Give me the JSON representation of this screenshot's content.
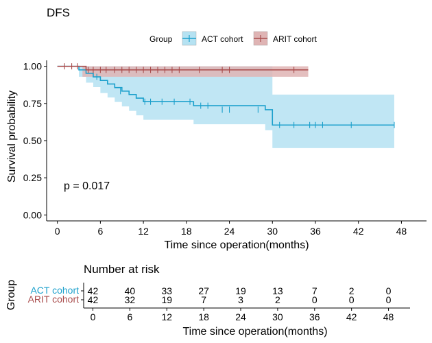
{
  "chart_data": {
    "type": "line",
    "title": "DFS",
    "legend": {
      "title": "Group",
      "placement": "top"
    },
    "xlabel": "Time since operation(months)",
    "ylabel": "Survival probability",
    "xlim": [
      -1.5,
      51.5
    ],
    "ylim": [
      -0.04,
      1.04
    ],
    "xticks": [
      0,
      6,
      12,
      18,
      24,
      30,
      36,
      42,
      48
    ],
    "yticks": [
      0.0,
      0.25,
      0.5,
      0.75,
      1.0
    ],
    "ytick_labels": [
      "0.00",
      "0.25",
      "0.50",
      "0.75",
      "1.00"
    ],
    "annotation": "p = 0.017",
    "series": [
      {
        "name": "ACT cohort",
        "color": "#1ba0cc",
        "fill": "#b5e2f2",
        "steps": [
          [
            0,
            1.0
          ],
          [
            3,
            0.976
          ],
          [
            4,
            0.953
          ],
          [
            5,
            0.929
          ],
          [
            6,
            0.905
          ],
          [
            7,
            0.881
          ],
          [
            8,
            0.857
          ],
          [
            9,
            0.833
          ],
          [
            10,
            0.81
          ],
          [
            11,
            0.786
          ],
          [
            12,
            0.762
          ],
          [
            19,
            0.735
          ],
          [
            29,
            0.708
          ],
          [
            30,
            0.605
          ],
          [
            47,
            0.605
          ]
        ],
        "lower": [
          [
            0,
            1.0
          ],
          [
            3,
            0.93
          ],
          [
            4,
            0.89
          ],
          [
            5,
            0.86
          ],
          [
            6,
            0.82
          ],
          [
            7,
            0.79
          ],
          [
            8,
            0.76
          ],
          [
            9,
            0.73
          ],
          [
            10,
            0.7
          ],
          [
            11,
            0.67
          ],
          [
            12,
            0.64
          ],
          [
            19,
            0.61
          ],
          [
            29,
            0.57
          ],
          [
            30,
            0.45
          ],
          [
            47,
            0.45
          ]
        ],
        "upper": [
          [
            0,
            1.0
          ],
          [
            3,
            1.0
          ],
          [
            30,
            0.81
          ],
          [
            47,
            0.81
          ]
        ],
        "censors": [
          [
            5.5,
            0.929
          ],
          [
            8.8,
            0.833
          ],
          [
            12.2,
            0.762
          ],
          [
            13,
            0.762
          ],
          [
            14.6,
            0.762
          ],
          [
            16.3,
            0.762
          ],
          [
            18.5,
            0.762
          ],
          [
            20,
            0.735
          ],
          [
            21,
            0.735
          ],
          [
            23,
            0.708
          ],
          [
            24,
            0.708
          ],
          [
            28,
            0.708
          ],
          [
            31,
            0.605
          ],
          [
            33,
            0.605
          ],
          [
            35.2,
            0.605
          ],
          [
            36,
            0.605
          ],
          [
            37,
            0.605
          ],
          [
            41,
            0.605
          ],
          [
            47,
            0.605
          ]
        ]
      },
      {
        "name": "ARIT cohort",
        "color": "#a94c4c",
        "fill": "#dfb4b4",
        "steps": [
          [
            0,
            1.0
          ],
          [
            4,
            0.976
          ],
          [
            35,
            0.976
          ]
        ],
        "lower": [
          [
            0,
            1.0
          ],
          [
            3.5,
            0.93
          ],
          [
            35,
            0.93
          ]
        ],
        "upper": [
          [
            0,
            1.0
          ],
          [
            35,
            1.0
          ]
        ],
        "censors": [
          [
            1,
            1.0
          ],
          [
            2,
            1.0
          ],
          [
            2.8,
            1.0
          ],
          [
            4.3,
            0.976
          ],
          [
            5,
            0.976
          ],
          [
            6,
            0.976
          ],
          [
            6.8,
            0.976
          ],
          [
            8,
            0.976
          ],
          [
            9,
            0.976
          ],
          [
            10,
            0.976
          ],
          [
            11,
            0.976
          ],
          [
            12,
            0.976
          ],
          [
            13,
            0.976
          ],
          [
            14,
            0.976
          ],
          [
            15,
            0.976
          ],
          [
            16,
            0.976
          ],
          [
            17,
            0.976
          ],
          [
            19.8,
            0.976
          ],
          [
            23,
            0.976
          ],
          [
            24,
            0.976
          ],
          [
            33,
            0.976
          ]
        ]
      }
    ],
    "risk_table": {
      "title": "Number at risk",
      "xlabel": "Time since operation(months)",
      "ylabel": "Group",
      "times": [
        0,
        6,
        12,
        18,
        24,
        30,
        36,
        42,
        48
      ],
      "rows": [
        {
          "name": "ACT cohort",
          "color": "#1ba0cc",
          "values": [
            42,
            40,
            33,
            27,
            19,
            13,
            7,
            2,
            0
          ]
        },
        {
          "name": "ARIT cohort",
          "color": "#a94c4c",
          "values": [
            42,
            32,
            19,
            7,
            3,
            2,
            0,
            0,
            0
          ]
        }
      ]
    }
  }
}
